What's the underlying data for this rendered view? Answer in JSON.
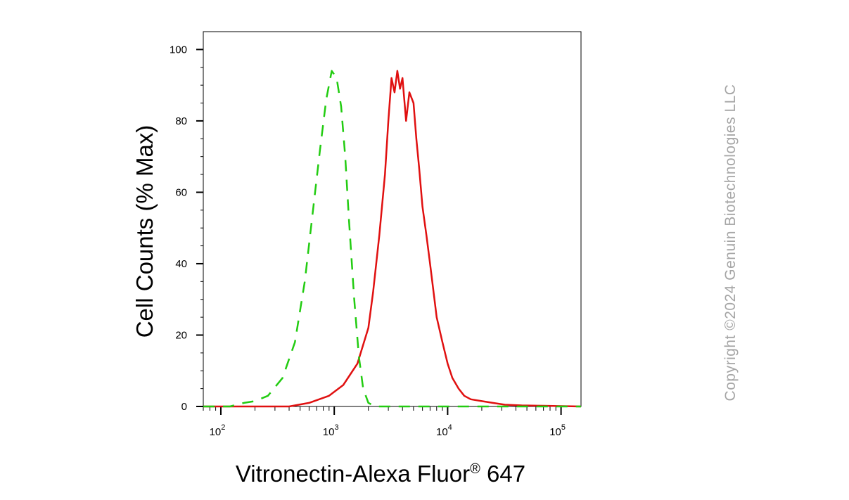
{
  "chart_data": {
    "type": "line",
    "xscale": "log",
    "xlim": [
      70,
      150000
    ],
    "ylim": [
      0,
      105
    ],
    "ylabel": "Cell Counts (% Max)",
    "xlabel": {
      "main": "Vitronectin-Alexa Fluor",
      "sup": "®",
      "suffix": " 647"
    },
    "y_ticks": [
      {
        "value": 0,
        "label": "0"
      },
      {
        "value": 20,
        "label": "20"
      },
      {
        "value": 40,
        "label": "40"
      },
      {
        "value": 60,
        "label": "60"
      },
      {
        "value": 80,
        "label": "80"
      },
      {
        "value": 100,
        "label": "100"
      }
    ],
    "x_ticks": [
      {
        "value": 100,
        "base": "10",
        "exp": "2"
      },
      {
        "value": 1000,
        "base": "10",
        "exp": "3"
      },
      {
        "value": 10000,
        "base": "10",
        "exp": "4"
      },
      {
        "value": 100000,
        "base": "10",
        "exp": "5"
      }
    ],
    "grid": false,
    "series": [
      {
        "color": "#e01010",
        "dash": "solid",
        "x": [
          70,
          400,
          600,
          900,
          1200,
          1600,
          2000,
          2200,
          2500,
          2800,
          3000,
          3200,
          3400,
          3600,
          3800,
          4000,
          4300,
          4600,
          5000,
          5300,
          5600,
          6000,
          6500,
          7000,
          8000,
          9000,
          10000,
          11000,
          12500,
          14000,
          16000,
          20000,
          25000,
          32000,
          45000,
          70000,
          150000
        ],
        "y": [
          0,
          0,
          1,
          3,
          6,
          12,
          22,
          32,
          48,
          65,
          80,
          92,
          88,
          94,
          89,
          92,
          80,
          88,
          85,
          75,
          67,
          56,
          48,
          40,
          25,
          18,
          12,
          8,
          5,
          3,
          2,
          1.5,
          1,
          0.5,
          0.3,
          0.2,
          0
        ]
      },
      {
        "color": "#22cc11",
        "dash": "dashed",
        "x": [
          70,
          120,
          160,
          200,
          260,
          350,
          450,
          550,
          650,
          750,
          850,
          950,
          1050,
          1150,
          1250,
          1350,
          1500,
          1650,
          1800,
          2000,
          2300,
          150000
        ],
        "y": [
          0,
          0,
          1,
          1.5,
          3,
          8,
          18,
          35,
          55,
          72,
          86,
          94,
          92,
          84,
          70,
          52,
          30,
          14,
          5,
          1,
          0,
          0
        ]
      }
    ]
  },
  "watermark": "Copyright ©2024 Genuin Biotechnologies LLC"
}
